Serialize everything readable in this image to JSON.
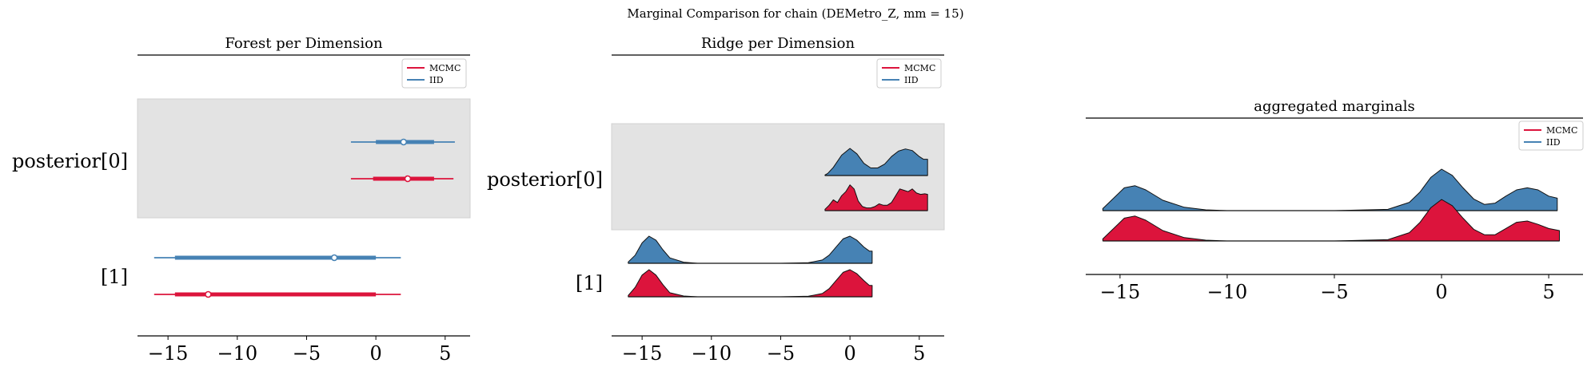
{
  "figure": {
    "suptitle": "Marginal Comparison for chain (DEMetro_Z, mm = 15)"
  },
  "colors": {
    "mcmc": "#dc143c",
    "iid": "#4682b4",
    "band": "#e3e3e3"
  },
  "chart_data": [
    {
      "type": "forest",
      "title": "Forest per Dimension",
      "xlim": [
        -17.2,
        6.8
      ],
      "xticks": [
        -15,
        -10,
        -5,
        0,
        5
      ],
      "xtick_labels": [
        "−15",
        "−10",
        "−5",
        "0",
        "5"
      ],
      "legend": {
        "placement": "top-right",
        "entries": [
          "MCMC",
          "IID"
        ]
      },
      "rows": [
        {
          "label": "posterior[0]",
          "shaded": true,
          "series": [
            {
              "name": "IID",
              "hdi94": [
                -1.8,
                5.7
              ],
              "iqr": [
                0.0,
                4.2
              ],
              "median": 2.0
            },
            {
              "name": "MCMC",
              "hdi94": [
                -1.8,
                5.6
              ],
              "iqr": [
                -0.2,
                4.2
              ],
              "median": 2.3
            }
          ]
        },
        {
          "label": "[1]",
          "shaded": false,
          "series": [
            {
              "name": "IID",
              "hdi94": [
                -16.0,
                1.8
              ],
              "iqr": [
                -14.5,
                0.0
              ],
              "median": -3.0
            },
            {
              "name": "MCMC",
              "hdi94": [
                -16.0,
                1.8
              ],
              "iqr": [
                -14.5,
                0.0
              ],
              "median": -12.1
            }
          ]
        }
      ]
    },
    {
      "type": "ridge",
      "title": "Ridge per Dimension",
      "xlim": [
        -17.2,
        6.8
      ],
      "xticks": [
        -15,
        -10,
        -5,
        0,
        5
      ],
      "xtick_labels": [
        "−15",
        "−10",
        "−5",
        "0",
        "5"
      ],
      "legend": {
        "placement": "top-right",
        "entries": [
          "MCMC",
          "IID"
        ]
      },
      "rows": [
        {
          "label": "posterior[0]",
          "shaded": true,
          "series": [
            {
              "name": "IID",
              "x": [
                -1.8,
                -1.6,
                -1.2,
                -0.6,
                0,
                0.5,
                1,
                1.5,
                2,
                2.5,
                3,
                3.5,
                4,
                4.5,
                5,
                5.3,
                5.6
              ],
              "y": [
                0.02,
                0.08,
                0.3,
                0.75,
                1.0,
                0.8,
                0.45,
                0.28,
                0.28,
                0.42,
                0.7,
                0.9,
                0.98,
                0.92,
                0.7,
                0.6,
                0.6
              ]
            },
            {
              "name": "MCMC",
              "x": [
                -1.8,
                -1.5,
                -1.2,
                -0.9,
                -0.6,
                -0.3,
                0,
                0.3,
                0.6,
                0.9,
                1.2,
                1.5,
                1.8,
                2.1,
                2.4,
                2.7,
                3,
                3.3,
                3.6,
                3.9,
                4.2,
                4.5,
                4.8,
                5.1,
                5.4,
                5.6
              ],
              "y": [
                0.05,
                0.2,
                0.4,
                0.3,
                0.55,
                0.7,
                0.95,
                0.8,
                0.35,
                0.15,
                0.1,
                0.1,
                0.15,
                0.25,
                0.2,
                0.2,
                0.3,
                0.55,
                0.8,
                0.75,
                0.7,
                0.8,
                0.65,
                0.6,
                0.62,
                0.6
              ]
            }
          ]
        },
        {
          "label": "[1]",
          "shaded": false,
          "series": [
            {
              "name": "IID",
              "x": [
                -16,
                -15.5,
                -15,
                -14.5,
                -14,
                -13.5,
                -13,
                -12,
                -11,
                -10,
                -8,
                -5,
                -3,
                -2,
                -1.5,
                -1,
                -0.5,
                0,
                0.5,
                1,
                1.4,
                1.6
              ],
              "y": [
                0.05,
                0.3,
                0.75,
                1.0,
                0.85,
                0.5,
                0.2,
                0.04,
                0.0,
                0.0,
                0.0,
                0.0,
                0.02,
                0.12,
                0.3,
                0.6,
                0.9,
                1.0,
                0.85,
                0.6,
                0.45,
                0.45
              ]
            },
            {
              "name": "MCMC",
              "x": [
                -16,
                -15.5,
                -15,
                -14.5,
                -14,
                -13.5,
                -13,
                -12,
                -11,
                -10,
                -8,
                -5,
                -3,
                -2,
                -1.5,
                -1,
                -0.5,
                0,
                0.5,
                1,
                1.4,
                1.6
              ],
              "y": [
                0.05,
                0.35,
                0.8,
                1.0,
                0.8,
                0.45,
                0.15,
                0.03,
                0.0,
                0.0,
                0.0,
                0.0,
                0.02,
                0.12,
                0.3,
                0.6,
                0.9,
                1.0,
                0.85,
                0.6,
                0.42,
                0.42
              ]
            }
          ]
        }
      ]
    },
    {
      "type": "ridge",
      "title": "aggregated marginals",
      "xlim": [
        -16.6,
        6.6
      ],
      "xticks": [
        -15,
        -10,
        -5,
        0,
        5
      ],
      "xtick_labels": [
        "−15",
        "−10",
        "−5",
        "0",
        "5"
      ],
      "legend": {
        "placement": "top-right",
        "entries": [
          "MCMC",
          "IID"
        ]
      },
      "rows": [
        {
          "label": "",
          "shaded": false,
          "series": [
            {
              "name": "IID",
              "x": [
                -15.8,
                -15.3,
                -14.8,
                -14.3,
                -13.8,
                -13,
                -12,
                -11,
                -10,
                -8,
                -5,
                -2.5,
                -1.5,
                -1,
                -0.5,
                0,
                0.5,
                1,
                1.5,
                2,
                2.5,
                3,
                3.5,
                4,
                4.5,
                5,
                5.4
              ],
              "y": [
                0.05,
                0.3,
                0.55,
                0.6,
                0.5,
                0.25,
                0.08,
                0.02,
                0.0,
                0.0,
                0.0,
                0.03,
                0.2,
                0.45,
                0.8,
                1.0,
                0.85,
                0.55,
                0.28,
                0.15,
                0.18,
                0.35,
                0.5,
                0.55,
                0.5,
                0.35,
                0.3
              ]
            },
            {
              "name": "MCMC",
              "x": [
                -15.8,
                -15.3,
                -14.8,
                -14.3,
                -13.8,
                -13,
                -12,
                -11,
                -10,
                -8,
                -5,
                -2.5,
                -1.5,
                -1,
                -0.5,
                0,
                0.5,
                1,
                1.5,
                2,
                2.5,
                3,
                3.5,
                4,
                4.5,
                5,
                5.5
              ],
              "y": [
                0.05,
                0.3,
                0.55,
                0.6,
                0.5,
                0.25,
                0.08,
                0.02,
                0.0,
                0.0,
                0.0,
                0.03,
                0.2,
                0.45,
                0.8,
                1.0,
                0.85,
                0.55,
                0.28,
                0.15,
                0.15,
                0.3,
                0.45,
                0.48,
                0.4,
                0.3,
                0.25
              ]
            }
          ]
        }
      ]
    }
  ]
}
